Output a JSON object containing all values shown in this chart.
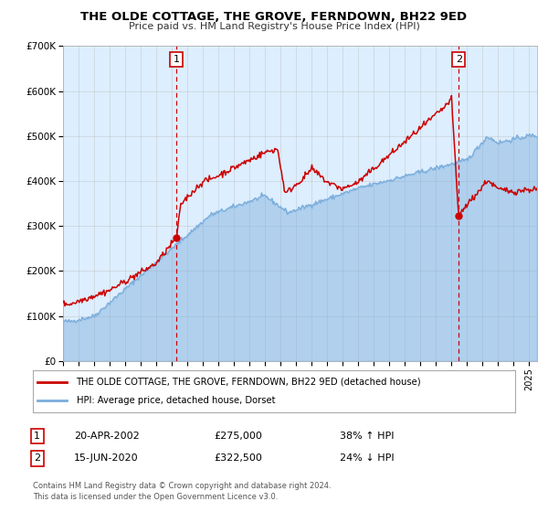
{
  "title": "THE OLDE COTTAGE, THE GROVE, FERNDOWN, BH22 9ED",
  "subtitle": "Price paid vs. HM Land Registry's House Price Index (HPI)",
  "legend_line1": "THE OLDE COTTAGE, THE GROVE, FERNDOWN, BH22 9ED (detached house)",
  "legend_line2": "HPI: Average price, detached house, Dorset",
  "footer1": "Contains HM Land Registry data © Crown copyright and database right 2024.",
  "footer2": "This data is licensed under the Open Government Licence v3.0.",
  "annotation1_label": "1",
  "annotation1_date": "20-APR-2002",
  "annotation1_price": "£275,000",
  "annotation1_hpi": "38% ↑ HPI",
  "annotation2_label": "2",
  "annotation2_date": "15-JUN-2020",
  "annotation2_price": "£322,500",
  "annotation2_hpi": "24% ↓ HPI",
  "sale1_year": 2002.3,
  "sale1_value": 275000,
  "sale2_year": 2020.46,
  "sale2_value": 322500,
  "red_color": "#cc0000",
  "blue_color": "#7aaddb",
  "bg_color": "#ddeeff",
  "grid_color": "#bbbbbb",
  "ylim": [
    0,
    700000
  ],
  "xlim_start": 1995,
  "xlim_end": 2025.5,
  "yticks": [
    0,
    100000,
    200000,
    300000,
    400000,
    500000,
    600000,
    700000
  ],
  "ytick_labels": [
    "£0",
    "£100K",
    "£200K",
    "£300K",
    "£400K",
    "£500K",
    "£600K",
    "£700K"
  ]
}
